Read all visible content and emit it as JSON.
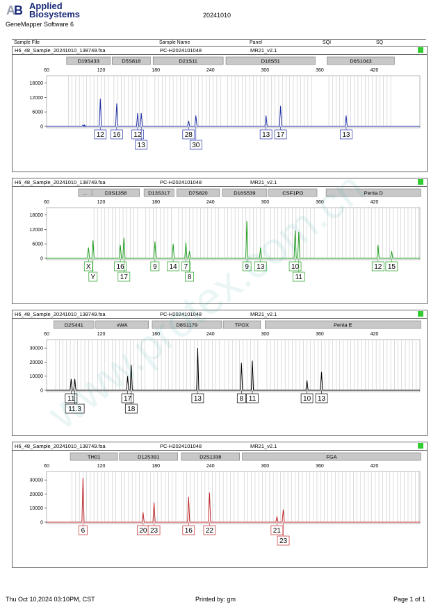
{
  "header": {
    "brand_line1": "Applied",
    "brand_line2": "Biosystems",
    "software": "GeneMapper Software 6",
    "run_date": "20241010"
  },
  "columns": {
    "sample_file": "Sample File",
    "sample_name": "Sample Name",
    "panel": "Panel",
    "sqi": "SQI",
    "sq": "SQ"
  },
  "watermark": "www.protex.com.cn",
  "footer": {
    "datetime": "Thu Oct 10,2024 03:10PM, CST",
    "printed_by": "Printed by: gm",
    "page": "Page 1 of 1"
  },
  "colors": {
    "quality_ok": "#33cc33",
    "blue_dye": "#1f2fa6",
    "green_dye": "#1f9c1f",
    "black_dye": "#000000",
    "red_dye": "#c0282b",
    "ladder_bin": "#bbbbbb",
    "marker_box": "#c8c8c8"
  },
  "chart_data": [
    {
      "type": "line",
      "dye": "blue",
      "color": "#1f2fa6",
      "sample_file": "H6_48_Sample_20241010_138749.fsa",
      "sample_name": "PC-H2024101048",
      "panel": "MR21_v2.1",
      "xlim": [
        60,
        470
      ],
      "xticks": [
        60,
        120,
        180,
        240,
        300,
        360,
        420
      ],
      "ylim": [
        0,
        21000
      ],
      "yticks": [
        0,
        6000,
        12000,
        18000
      ],
      "markers": [
        {
          "name": "D19S433",
          "start": 82,
          "end": 130
        },
        {
          "name": "D5S818",
          "start": 132,
          "end": 174
        },
        {
          "name": "D21S11",
          "start": 177,
          "end": 254
        },
        {
          "name": "D18S51",
          "start": 257,
          "end": 355
        },
        {
          "name": "D6S1043",
          "start": 368,
          "end": 442
        }
      ],
      "peaks": [
        {
          "x": 100,
          "height": 600
        },
        {
          "x": 102,
          "height": 300
        },
        {
          "x": 102,
          "height": 200
        },
        {
          "x": 102,
          "height": 0
        },
        {
          "x": 104,
          "height": 0
        }
      ],
      "alleles": [
        {
          "x": 101.6,
          "height": 600,
          "label": "",
          "row": 0
        },
        {
          "x": 119,
          "height": 11500,
          "label": "12",
          "row": 0
        },
        {
          "x": 137,
          "height": 9500,
          "label": "16",
          "row": 0
        },
        {
          "x": 160,
          "height": 5500,
          "label": "12",
          "row": 0
        },
        {
          "x": 164,
          "height": 5500,
          "label": "13",
          "row": 1
        },
        {
          "x": 216,
          "height": 2300,
          "label": "28",
          "row": 0
        },
        {
          "x": 224,
          "height": 4500,
          "label": "30",
          "row": 1
        },
        {
          "x": 301,
          "height": 4500,
          "label": "13",
          "row": 0
        },
        {
          "x": 317,
          "height": 8500,
          "label": "17",
          "row": 0
        },
        {
          "x": 389,
          "height": 4500,
          "label": "13",
          "row": 0
        }
      ]
    },
    {
      "type": "line",
      "dye": "green",
      "color": "#1f9c1f",
      "sample_file": "H6_48_Sample_20241010_138749.fsa",
      "sample_name": "PC-H2024101048",
      "panel": "MR21_v2.1",
      "xlim": [
        60,
        470
      ],
      "xticks": [
        60,
        120,
        180,
        240,
        300,
        360,
        420
      ],
      "ylim": [
        0,
        21000
      ],
      "yticks": [
        0,
        6000,
        12000,
        18000
      ],
      "markers": [
        {
          "name": "...",
          "start": 95,
          "end": 109
        },
        {
          "name": "D3S1358",
          "start": 110,
          "end": 162
        },
        {
          "name": "D13S317",
          "start": 167,
          "end": 200
        },
        {
          "name": "D7S820",
          "start": 203,
          "end": 250
        },
        {
          "name": "D16S539",
          "start": 253,
          "end": 302
        },
        {
          "name": "CSF1PO",
          "start": 304,
          "end": 357
        },
        {
          "name": "Penta D",
          "start": 367,
          "end": 471
        }
      ],
      "peaks": [],
      "alleles": [
        {
          "x": 106,
          "height": 4500,
          "label": "X",
          "row": 0
        },
        {
          "x": 111,
          "height": 7500,
          "label": "Y",
          "row": 1
        },
        {
          "x": 141,
          "height": 5500,
          "label": "16",
          "row": 0
        },
        {
          "x": 145,
          "height": 8500,
          "label": "17",
          "row": 1
        },
        {
          "x": 179,
          "height": 7000,
          "label": "9",
          "row": 0
        },
        {
          "x": 199,
          "height": 6000,
          "label": "14",
          "row": 0
        },
        {
          "x": 213,
          "height": 6500,
          "label": "7",
          "row": 0
        },
        {
          "x": 217,
          "height": 3000,
          "label": "8",
          "row": 1
        },
        {
          "x": 280,
          "height": 15500,
          "label": "9",
          "row": 0
        },
        {
          "x": 295,
          "height": 4500,
          "label": "13",
          "row": 0
        },
        {
          "x": 333,
          "height": 11500,
          "label": "10",
          "row": 0
        },
        {
          "x": 337,
          "height": 11000,
          "label": "11",
          "row": 1
        },
        {
          "x": 424,
          "height": 5500,
          "label": "12",
          "row": 0
        },
        {
          "x": 439,
          "height": 3000,
          "label": "15",
          "row": 0
        }
      ]
    },
    {
      "type": "line",
      "dye": "black",
      "color": "#000000",
      "sample_file": "H6_48_Sample_20241010_138749.fsa",
      "sample_name": "PC-H2024101048",
      "panel": "MR21_v2.1",
      "xlim": [
        60,
        470
      ],
      "xticks": [
        60,
        120,
        180,
        240,
        300,
        360,
        420
      ],
      "ylim": [
        0,
        36000
      ],
      "yticks": [
        0,
        10000,
        20000,
        30000
      ],
      "markers": [
        {
          "name": "D2S441",
          "start": 68,
          "end": 112
        },
        {
          "name": "vWA",
          "start": 114,
          "end": 172
        },
        {
          "name": "D8S1179",
          "start": 176,
          "end": 252
        },
        {
          "name": "TPOX",
          "start": 254,
          "end": 295
        },
        {
          "name": "Penta E",
          "start": 300,
          "end": 471
        }
      ],
      "peaks": [],
      "alleles": [
        {
          "x": 87,
          "height": 8000,
          "label": "11",
          "row": 0
        },
        {
          "x": 91,
          "height": 8000,
          "label": "11.3",
          "row": 1
        },
        {
          "x": 149,
          "height": 10000,
          "label": "17",
          "row": 0
        },
        {
          "x": 153,
          "height": 18000,
          "label": "18",
          "row": 1
        },
        {
          "x": 226,
          "height": 30000,
          "label": "13",
          "row": 0
        },
        {
          "x": 274,
          "height": 19500,
          "label": "8",
          "row": 0
        },
        {
          "x": 286,
          "height": 21000,
          "label": "11",
          "row": 0
        },
        {
          "x": 346,
          "height": 7000,
          "label": "10",
          "row": 0
        },
        {
          "x": 362,
          "height": 13000,
          "label": "13",
          "row": 0
        }
      ]
    },
    {
      "type": "line",
      "dye": "red",
      "color": "#c0282b",
      "sample_file": "H6_48_Sample_20241010_138749.fsa",
      "sample_name": "PC-H2024101048",
      "panel": "MR21_v2.1",
      "xlim": [
        60,
        470
      ],
      "xticks": [
        60,
        120,
        180,
        240,
        300,
        360,
        420
      ],
      "ylim": [
        0,
        36000
      ],
      "yticks": [
        0,
        10000,
        20000,
        30000
      ],
      "markers": [
        {
          "name": "TH01",
          "start": 86,
          "end": 138
        },
        {
          "name": "D12S391",
          "start": 140,
          "end": 204
        },
        {
          "name": "D2S1338",
          "start": 208,
          "end": 272
        },
        {
          "name": "FGA",
          "start": 275,
          "end": 471
        }
      ],
      "peaks": [],
      "alleles": [
        {
          "x": 100,
          "height": 31500,
          "label": "6",
          "row": 0
        },
        {
          "x": 166,
          "height": 7000,
          "label": "20",
          "row": 0
        },
        {
          "x": 178,
          "height": 14000,
          "label": "23",
          "row": 0
        },
        {
          "x": 216,
          "height": 18000,
          "label": "16",
          "row": 0
        },
        {
          "x": 239,
          "height": 21000,
          "label": "22",
          "row": 0
        },
        {
          "x": 313,
          "height": 4000,
          "label": "21",
          "row": 0
        },
        {
          "x": 320,
          "height": 9000,
          "label": "23",
          "row": 1
        }
      ]
    }
  ]
}
